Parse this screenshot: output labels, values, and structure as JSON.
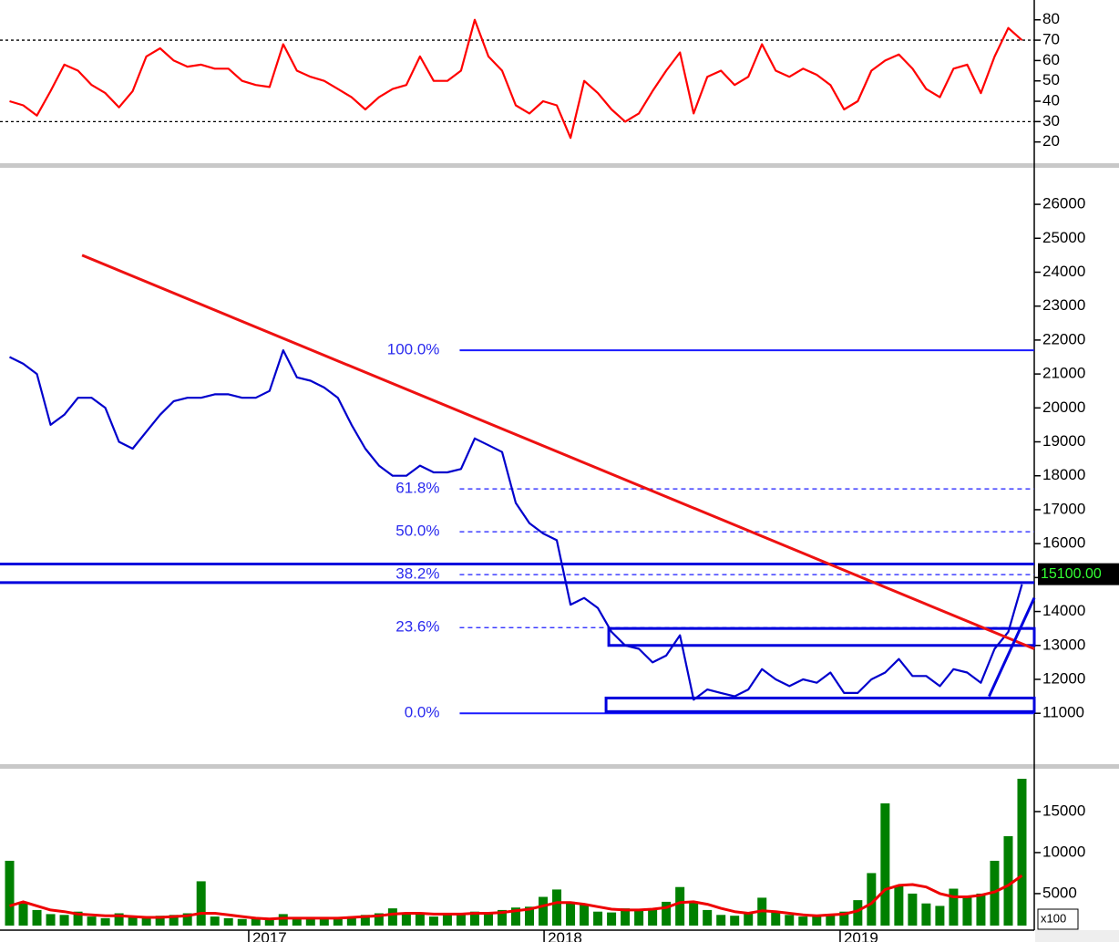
{
  "chart_data": [
    {
      "type": "line",
      "series": [
        {
          "color": "#ff0000",
          "values": [
            40,
            38,
            33,
            45,
            58,
            55,
            48,
            44,
            37,
            45,
            62,
            66,
            60,
            57,
            58,
            56,
            56,
            50,
            48,
            47,
            68,
            55,
            52,
            50,
            46,
            42,
            36,
            42,
            46,
            48,
            62,
            50,
            50,
            55,
            80,
            62,
            55,
            38,
            34,
            40,
            38,
            22,
            50,
            44,
            36,
            30,
            34,
            45,
            55,
            64,
            34,
            52,
            55,
            48,
            52,
            68,
            55,
            52,
            56,
            53,
            48,
            36,
            40,
            55,
            60,
            63,
            56,
            46,
            42,
            56,
            58,
            44,
            62,
            76,
            70
          ]
        }
      ],
      "xlim": [
        -0.7,
        74.9
      ],
      "ylim": [
        10,
        87.5
      ],
      "yticks": [
        20,
        30,
        40,
        50,
        60,
        70,
        80
      ],
      "reference_lines": [
        30,
        70
      ]
    },
    {
      "type": "line",
      "series": [
        {
          "color": "#0000cc",
          "values": [
            21500,
            21300,
            21000,
            19500,
            19800,
            20300,
            20300,
            20000,
            19000,
            18800,
            19300,
            19800,
            20200,
            20300,
            20300,
            20400,
            20400,
            20300,
            20300,
            20500,
            21700,
            20900,
            20800,
            20600,
            20300,
            19500,
            18800,
            18300,
            18000,
            18000,
            18300,
            18100,
            18100,
            18200,
            19100,
            18900,
            18700,
            17200,
            16600,
            16300,
            16100,
            14200,
            14400,
            14100,
            13400,
            13000,
            12900,
            12500,
            12700,
            13300,
            11400,
            11700,
            11600,
            11500,
            11700,
            12300,
            12000,
            11800,
            12000,
            11900,
            12200,
            11600,
            11600,
            12000,
            12200,
            12600,
            12100,
            12100,
            11800,
            12300,
            12200,
            11900,
            12900,
            13400,
            14800
          ]
        }
      ],
      "xlim": [
        -0.7,
        74.9
      ],
      "ylim": [
        9500,
        27050
      ],
      "yticks": [
        11000,
        12000,
        13000,
        14000,
        15000,
        16000,
        17000,
        18000,
        19000,
        20000,
        21000,
        22000,
        23000,
        24000,
        25000,
        26000
      ],
      "fibonacci": {
        "low": 11000,
        "high": 21700,
        "start": 32.9,
        "levels": [
          {
            "value": 0,
            "label": "0.0%"
          },
          {
            "value": 23.6,
            "label": "23.6%"
          },
          {
            "value": 38.2,
            "label": "38.2%"
          },
          {
            "value": 50,
            "label": "50.0%"
          },
          {
            "value": 61.8,
            "label": "61.8%"
          },
          {
            "value": 100,
            "label": "100.0%"
          }
        ]
      },
      "trendlines": [
        {
          "color": "#ee1111",
          "x": [
            5.3,
            74.9
          ],
          "y": [
            24500,
            12900
          ]
        },
        {
          "color": "#0000dd",
          "x": [
            71.6,
            74.9
          ],
          "y": [
            11500,
            14400
          ]
        }
      ],
      "horizontal_lines": [
        15400,
        14850
      ],
      "boxes": [
        {
          "x": [
            43.8,
            74.9
          ],
          "y": [
            13000,
            13500
          ]
        },
        {
          "x": [
            43.6,
            74.9
          ],
          "y": [
            11050,
            11450
          ]
        }
      ],
      "last_price": {
        "value": 15100,
        "label": "15100.00"
      }
    },
    {
      "type": "bar",
      "series": [
        {
          "color": "#008000",
          "values": [
            9000,
            4000,
            3000,
            2500,
            2400,
            2800,
            2200,
            2000,
            2600,
            2200,
            2000,
            2300,
            2400,
            2600,
            6500,
            2200,
            2000,
            1900,
            2000,
            1800,
            2500,
            2000,
            2000,
            1900,
            2100,
            2200,
            2400,
            2600,
            3200,
            2500,
            2600,
            2200,
            2600,
            2400,
            2800,
            2600,
            3000,
            3300,
            3400,
            4600,
            5500,
            4000,
            3600,
            2800,
            2700,
            3200,
            3000,
            3200,
            4000,
            5800,
            4000,
            3000,
            2400,
            2300,
            2600,
            4500,
            2800,
            2400,
            2200,
            2300,
            2500,
            2800,
            4200,
            7500,
            16000,
            6000,
            5000,
            3800,
            3500,
            5600,
            4500,
            5000,
            9000,
            12000,
            19000
          ]
        },
        {
          "color": "#ee0000",
          "values": [
            3500,
            4000,
            3500,
            3000,
            2800,
            2500,
            2400,
            2300,
            2300,
            2200,
            2100,
            2100,
            2200,
            2300,
            2600,
            2600,
            2400,
            2200,
            2000,
            1900,
            2000,
            2000,
            2000,
            2000,
            2000,
            2100,
            2200,
            2300,
            2500,
            2600,
            2600,
            2500,
            2500,
            2500,
            2600,
            2600,
            2700,
            2900,
            3100,
            3500,
            3900,
            3900,
            3700,
            3400,
            3100,
            3000,
            3000,
            3100,
            3300,
            3900,
            4000,
            3700,
            3200,
            2800,
            2600,
            2900,
            2800,
            2600,
            2400,
            2300,
            2400,
            2500,
            2900,
            3800,
            5500,
            6000,
            6100,
            5800,
            5000,
            4600,
            4600,
            4800,
            5200,
            6000,
            7200
          ]
        }
      ],
      "xlim": [
        -0.7,
        74.9
      ],
      "ylim": [
        1100,
        20000
      ],
      "yticks": [
        5000,
        10000,
        15000
      ],
      "unit_label": "x100",
      "xticks": [
        {
          "value": 17.48,
          "label": "2017"
        },
        {
          "value": 39.07,
          "label": "2018"
        },
        {
          "value": 60.71,
          "label": "2019"
        }
      ]
    }
  ]
}
